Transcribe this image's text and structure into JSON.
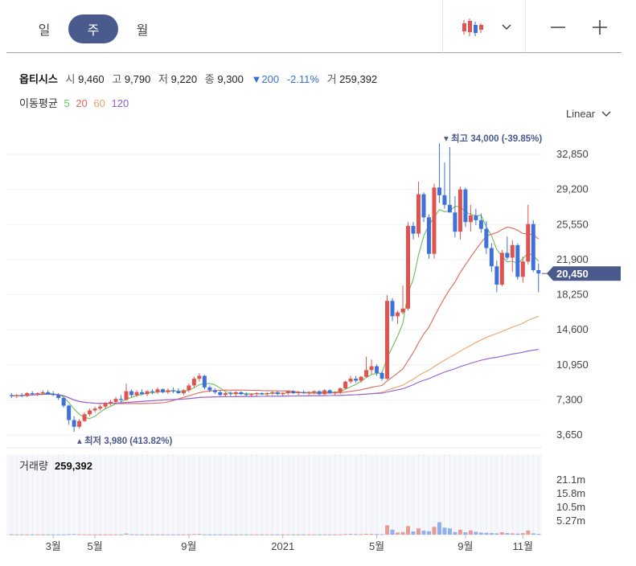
{
  "toolbar": {
    "tabs": [
      {
        "label": "일",
        "active": false
      },
      {
        "label": "주",
        "active": true
      },
      {
        "label": "월",
        "active": false
      }
    ],
    "chart_type_icon": "candlestick-icon",
    "dropdown_icon": "chevron-down-icon",
    "zoom_out_icon": "minus-icon",
    "zoom_in_icon": "plus-icon"
  },
  "stock": {
    "name": "옵티시스",
    "open_label": "시",
    "open": "9,460",
    "high_label": "고",
    "high": "9,790",
    "low_label": "저",
    "low": "9,220",
    "close_label": "종",
    "close": "9,300",
    "change": "▼200",
    "change_pct": "-2.11%",
    "volume_label": "거",
    "volume": "259,392"
  },
  "ma": {
    "label": "이동평균",
    "periods": [
      {
        "label": "5",
        "color": "#6cbf5a"
      },
      {
        "label": "20",
        "color": "#e0675a"
      },
      {
        "label": "60",
        "color": "#e8a56a"
      },
      {
        "label": "120",
        "color": "#8f5fd8"
      }
    ]
  },
  "scale": {
    "label": "Linear"
  },
  "price_axis": [
    "32,850",
    "29,200",
    "25,550",
    "21,900",
    "18,250",
    "14,600",
    "10,950",
    "7,300",
    "3,650"
  ],
  "current_price": "20,450",
  "high_annotation": "최고 34,000 (-39.85%)",
  "low_annotation": "최저 3,980 (413.82%)",
  "volume_panel": {
    "label": "거래량",
    "value": "259,392",
    "axis": [
      "21.1m",
      "15.8m",
      "10.5m",
      "5.27m"
    ]
  },
  "x_axis": [
    "3월",
    "5월",
    "9월",
    "2021",
    "5월",
    "9월",
    "11월"
  ],
  "colors": {
    "up": "#e0534f",
    "down": "#3f72d9",
    "accent": "#4a5a8c"
  },
  "chart_data": {
    "type": "candlestick",
    "ylim": [
      3650,
      34000
    ],
    "candles": [
      [
        7800,
        8000,
        7500,
        7700
      ],
      [
        7700,
        7900,
        7500,
        7800
      ],
      [
        7800,
        8000,
        7600,
        7700
      ],
      [
        7700,
        8100,
        7600,
        8000
      ],
      [
        8000,
        8200,
        7800,
        7900
      ],
      [
        7900,
        8100,
        7700,
        8000
      ],
      [
        8000,
        8300,
        7800,
        8100
      ],
      [
        8100,
        8300,
        7900,
        7900
      ],
      [
        7900,
        8200,
        7700,
        7800
      ],
      [
        7800,
        8000,
        7300,
        7500
      ],
      [
        7500,
        7600,
        6500,
        6700
      ],
      [
        6700,
        6800,
        4700,
        5200
      ],
      [
        5200,
        5600,
        3980,
        4500
      ],
      [
        4500,
        5300,
        4300,
        5100
      ],
      [
        5100,
        6000,
        5000,
        5800
      ],
      [
        5800,
        6400,
        5600,
        6200
      ],
      [
        6200,
        6600,
        6000,
        6400
      ],
      [
        6400,
        6800,
        6200,
        6600
      ],
      [
        6600,
        7100,
        6400,
        6900
      ],
      [
        6900,
        7300,
        6700,
        7100
      ],
      [
        7100,
        7600,
        6900,
        7400
      ],
      [
        7400,
        7800,
        7100,
        7300
      ],
      [
        7300,
        9000,
        7200,
        8200
      ],
      [
        8200,
        8400,
        7600,
        7800
      ],
      [
        7800,
        8300,
        7600,
        8100
      ],
      [
        8100,
        8400,
        7800,
        7900
      ],
      [
        7900,
        8300,
        7700,
        8200
      ],
      [
        8200,
        8400,
        7900,
        8100
      ],
      [
        8100,
        8600,
        7900,
        8400
      ],
      [
        8400,
        8500,
        8000,
        8100
      ],
      [
        8100,
        8500,
        7900,
        8300
      ],
      [
        8300,
        8600,
        8000,
        8200
      ],
      [
        8200,
        8500,
        7900,
        8000
      ],
      [
        8000,
        8400,
        7800,
        8300
      ],
      [
        8300,
        9000,
        8100,
        8800
      ],
      [
        8800,
        9700,
        8600,
        9500
      ],
      [
        9500,
        10100,
        9200,
        9800
      ],
      [
        9800,
        9900,
        8400,
        8600
      ],
      [
        8600,
        8800,
        8100,
        8300
      ],
      [
        8300,
        8500,
        7900,
        8100
      ],
      [
        8100,
        8300,
        7700,
        7800
      ],
      [
        7800,
        8100,
        7600,
        8000
      ],
      [
        8000,
        8200,
        7700,
        7900
      ],
      [
        7900,
        8200,
        7700,
        8100
      ],
      [
        8100,
        8200,
        7800,
        7900
      ],
      [
        7900,
        8100,
        7700,
        7800
      ],
      [
        7800,
        8000,
        7600,
        7900
      ],
      [
        7900,
        8100,
        7700,
        8000
      ],
      [
        8000,
        8100,
        7800,
        7900
      ],
      [
        7900,
        8100,
        7700,
        8000
      ],
      [
        8000,
        8200,
        7800,
        8100
      ],
      [
        8100,
        8200,
        7800,
        7900
      ],
      [
        7900,
        8100,
        7700,
        8000
      ],
      [
        8000,
        8300,
        7800,
        8200
      ],
      [
        8200,
        8300,
        7900,
        8000
      ],
      [
        8000,
        8200,
        7800,
        8100
      ],
      [
        8100,
        8300,
        7900,
        8000
      ],
      [
        8000,
        8200,
        7800,
        8100
      ],
      [
        8100,
        8300,
        7900,
        8200
      ],
      [
        8200,
        8300,
        7800,
        7900
      ],
      [
        7900,
        8400,
        7800,
        8300
      ],
      [
        8300,
        8400,
        7900,
        8000
      ],
      [
        8000,
        8200,
        7800,
        8100
      ],
      [
        8100,
        8600,
        7900,
        8500
      ],
      [
        8500,
        9300,
        8400,
        9200
      ],
      [
        9200,
        9800,
        9000,
        9500
      ],
      [
        9500,
        9800,
        9100,
        9300
      ],
      [
        9300,
        9800,
        9100,
        9700
      ],
      [
        9700,
        11800,
        9600,
        10400
      ],
      [
        10400,
        11500,
        10000,
        10800
      ],
      [
        10800,
        11000,
        9800,
        10100
      ],
      [
        10100,
        10300,
        9300,
        9500
      ],
      [
        9500,
        18200,
        9400,
        17600
      ],
      [
        17600,
        17900,
        15500,
        16000
      ],
      [
        16000,
        16600,
        15200,
        16400
      ],
      [
        16400,
        19200,
        16200,
        16800
      ],
      [
        16800,
        25800,
        16600,
        25400
      ],
      [
        25400,
        25800,
        24000,
        24600
      ],
      [
        24600,
        30000,
        24200,
        28700
      ],
      [
        28700,
        28900,
        25800,
        26300
      ],
      [
        26300,
        26600,
        22000,
        22500
      ],
      [
        22500,
        29800,
        22000,
        29400
      ],
      [
        29400,
        34000,
        27800,
        28600
      ],
      [
        28600,
        32000,
        27200,
        27600
      ],
      [
        27600,
        33600,
        26800,
        26800
      ],
      [
        26800,
        28500,
        24200,
        24800
      ],
      [
        24800,
        29500,
        24000,
        29200
      ],
      [
        29200,
        29400,
        25300,
        25800
      ],
      [
        25800,
        27600,
        24800,
        26500
      ],
      [
        26500,
        27200,
        25500,
        26000
      ],
      [
        26000,
        26700,
        24700,
        25100
      ],
      [
        25100,
        25900,
        22500,
        23100
      ],
      [
        23100,
        23600,
        20600,
        21200
      ],
      [
        21200,
        21800,
        18500,
        19300
      ],
      [
        19300,
        22900,
        19100,
        22600
      ],
      [
        22600,
        24300,
        21900,
        22100
      ],
      [
        22100,
        23900,
        20600,
        23400
      ],
      [
        23400,
        23600,
        19800,
        20100
      ],
      [
        20100,
        22200,
        19500,
        21700
      ],
      [
        21700,
        27600,
        21400,
        25600
      ],
      [
        25600,
        26000,
        20600,
        20800
      ],
      [
        20800,
        21500,
        18500,
        20450
      ]
    ],
    "volume": [
      0.12,
      0.08,
      0.1,
      0.07,
      0.09,
      0.11,
      0.06,
      0.08,
      0.1,
      0.07,
      0.09,
      0.18,
      0.25,
      0.14,
      0.09,
      0.08,
      0.1,
      0.07,
      0.09,
      0.08,
      0.1,
      0.07,
      0.45,
      0.12,
      0.09,
      0.08,
      0.07,
      0.1,
      0.09,
      0.08,
      0.07,
      0.1,
      0.08,
      0.09,
      0.14,
      0.22,
      0.3,
      0.1,
      0.08,
      0.07,
      0.09,
      0.07,
      0.08,
      0.06,
      0.09,
      0.07,
      0.08,
      0.1,
      0.07,
      0.06,
      0.08,
      0.09,
      0.07,
      0.1,
      0.08,
      0.07,
      0.09,
      0.08,
      0.07,
      0.1,
      0.09,
      0.08,
      0.07,
      0.1,
      0.22,
      0.3,
      0.2,
      0.18,
      0.35,
      0.28,
      0.2,
      0.16,
      3.6,
      1.9,
      0.8,
      1.0,
      3.3,
      1.2,
      2.4,
      1.5,
      1.3,
      3.0,
      4.8,
      2.7,
      2.4,
      1.0,
      1.9,
      0.9,
      1.6,
      1.1,
      0.8,
      0.7,
      0.6,
      0.5,
      0.9,
      0.6,
      0.5,
      0.4,
      0.6,
      1.6,
      0.5,
      0.26
    ]
  }
}
